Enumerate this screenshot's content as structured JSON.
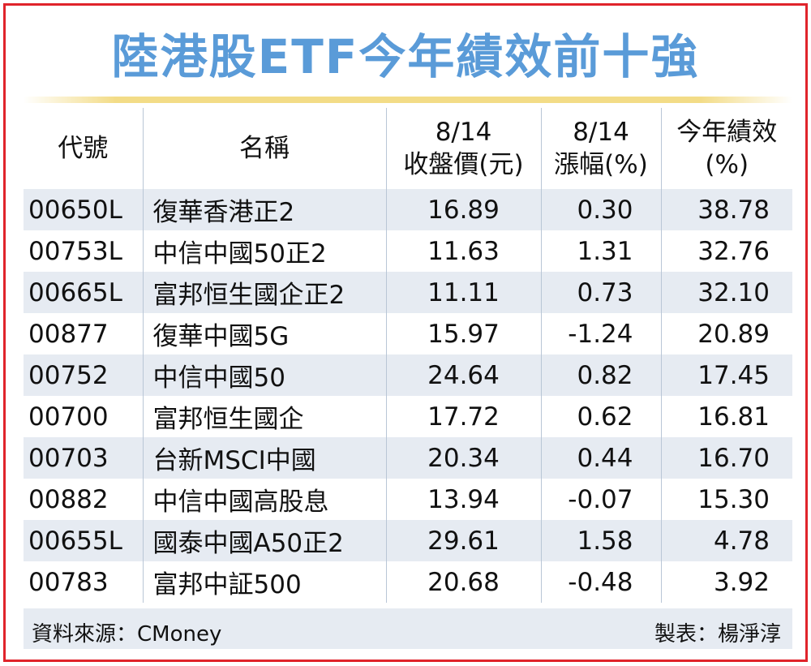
{
  "title": "陸港股ETF今年績效前十強",
  "columns": {
    "code": "代號",
    "name": "名稱",
    "close": [
      "8/14",
      "收盤價(元)"
    ],
    "change": [
      "8/14",
      "漲幅(%)"
    ],
    "ytd": [
      "今年績效",
      "(%)"
    ]
  },
  "rows": [
    {
      "code": "00650L",
      "name": "復華香港正2",
      "close": "16.89",
      "change": "0.30",
      "ytd": "38.78"
    },
    {
      "code": "00753L",
      "name": "中信中國50正2",
      "close": "11.63",
      "change": "1.31",
      "ytd": "32.76"
    },
    {
      "code": "00665L",
      "name": "富邦恒生國企正2",
      "close": "11.11",
      "change": "0.73",
      "ytd": "32.10"
    },
    {
      "code": "00877",
      "name": "復華中國5G",
      "close": "15.97",
      "change": "-1.24",
      "ytd": "20.89"
    },
    {
      "code": "00752",
      "name": "中信中國50",
      "close": "24.64",
      "change": "0.82",
      "ytd": "17.45"
    },
    {
      "code": "00700",
      "name": "富邦恒生國企",
      "close": "17.72",
      "change": "0.62",
      "ytd": "16.81"
    },
    {
      "code": "00703",
      "name": "台新MSCI中國",
      "close": "20.34",
      "change": "0.44",
      "ytd": "16.70"
    },
    {
      "code": "00882",
      "name": "中信中國高股息",
      "close": "13.94",
      "change": "-0.07",
      "ytd": "15.30"
    },
    {
      "code": "00655L",
      "name": "國泰中國A50正2",
      "close": "29.61",
      "change": "1.58",
      "ytd": "4.78"
    },
    {
      "code": "00783",
      "name": "富邦中証500",
      "close": "20.68",
      "change": "-0.48",
      "ytd": "3.92"
    }
  ],
  "footer": {
    "source": "資料來源：CMoney",
    "maker": "製表：楊淨淳"
  },
  "colors": {
    "title": "#5a9bd8",
    "border": "#e0242b",
    "rule": "#f3dc87",
    "stripe": "#e6ebf2"
  },
  "chart_data": {
    "type": "table",
    "title": "陸港股ETF今年績效前十強",
    "columns": [
      "代號",
      "名稱",
      "8/14 收盤價(元)",
      "8/14 漲幅(%)",
      "今年績效 (%)"
    ],
    "rows": [
      [
        "00650L",
        "復華香港正2",
        16.89,
        0.3,
        38.78
      ],
      [
        "00753L",
        "中信中國50正2",
        11.63,
        1.31,
        32.76
      ],
      [
        "00665L",
        "富邦恒生國企正2",
        11.11,
        0.73,
        32.1
      ],
      [
        "00877",
        "復華中國5G",
        15.97,
        -1.24,
        20.89
      ],
      [
        "00752",
        "中信中國50",
        24.64,
        0.82,
        17.45
      ],
      [
        "00700",
        "富邦恒生國企",
        17.72,
        0.62,
        16.81
      ],
      [
        "00703",
        "台新MSCI中國",
        20.34,
        0.44,
        16.7
      ],
      [
        "00882",
        "中信中國高股息",
        13.94,
        -0.07,
        15.3
      ],
      [
        "00655L",
        "國泰中國A50正2",
        29.61,
        1.58,
        4.78
      ],
      [
        "00783",
        "富邦中証500",
        20.68,
        -0.48,
        3.92
      ]
    ]
  }
}
